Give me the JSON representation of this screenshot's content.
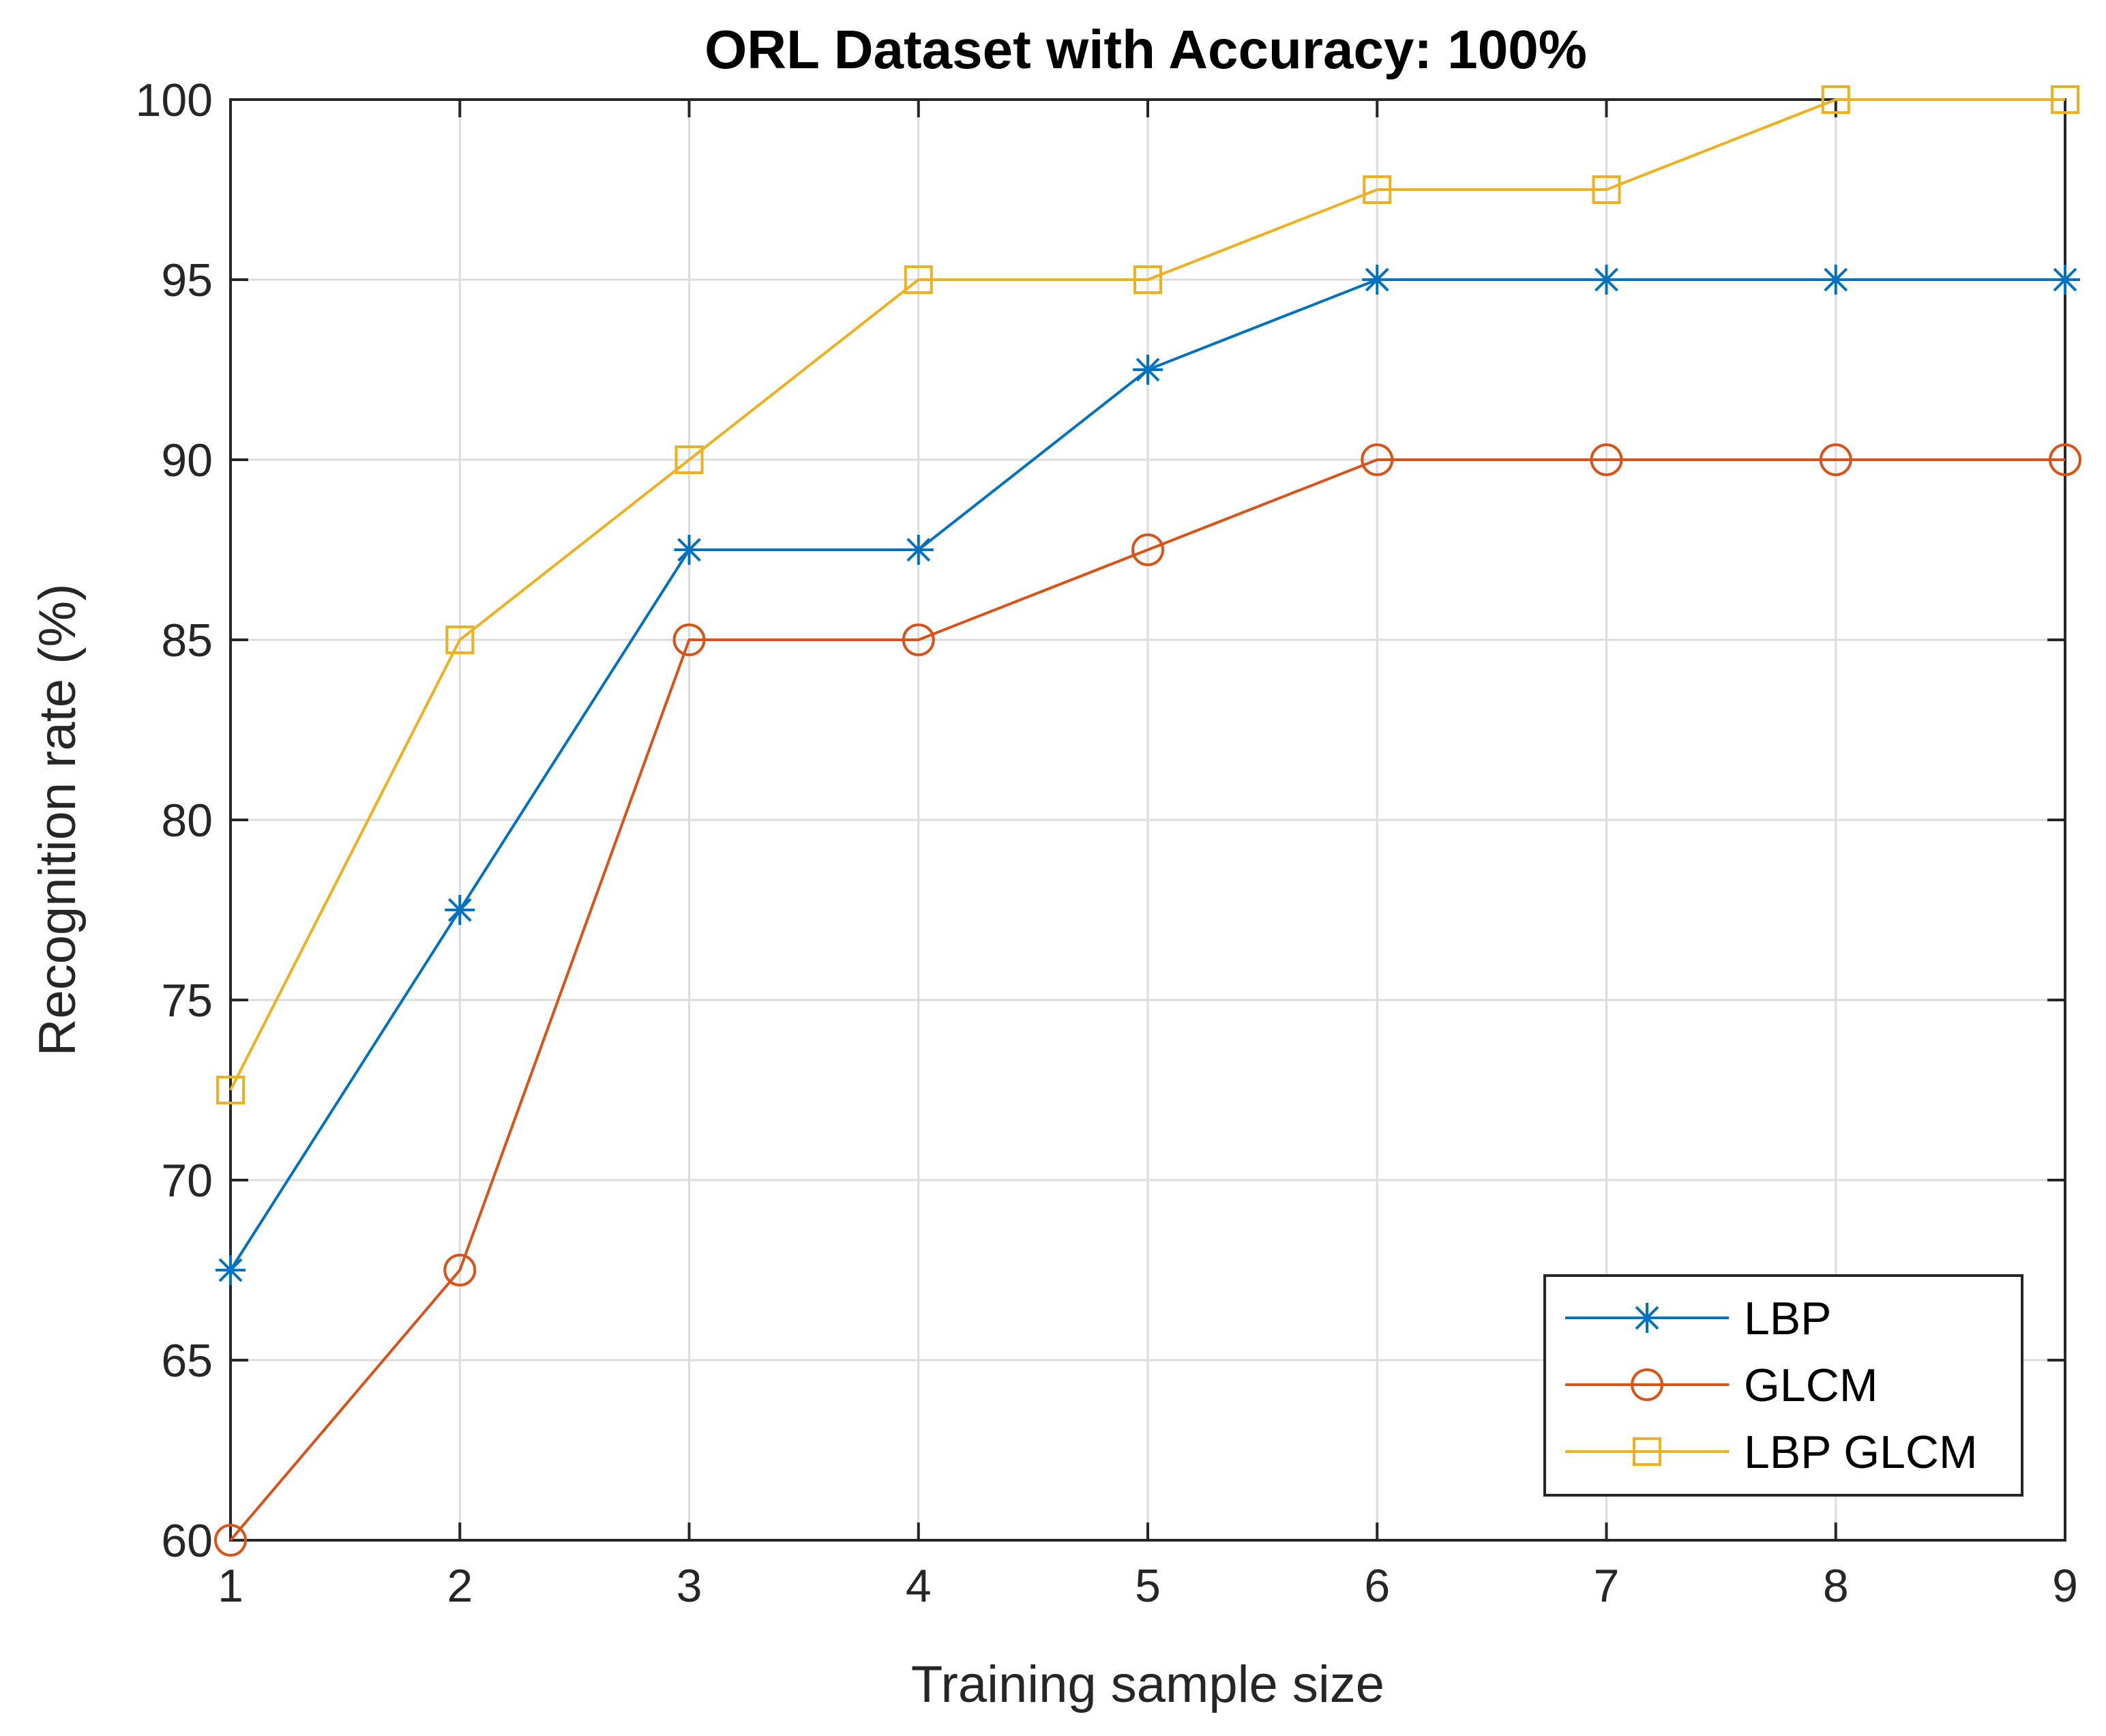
{
  "chart_data": {
    "type": "line",
    "title": "ORL Dataset with Accuracy: 100%",
    "xlabel": "Training sample size",
    "ylabel": "Recognition rate (%)",
    "xlim": [
      1,
      9
    ],
    "ylim": [
      60,
      100
    ],
    "x": [
      1,
      2,
      3,
      4,
      5,
      6,
      7,
      8,
      9
    ],
    "xticks": [
      1,
      2,
      3,
      4,
      5,
      6,
      7,
      8,
      9
    ],
    "yticks": [
      60,
      65,
      70,
      75,
      80,
      85,
      90,
      95,
      100
    ],
    "grid": true,
    "legend_position": "bottom-right",
    "series": [
      {
        "name": "LBP",
        "marker": "asterisk",
        "color": "#0072BD",
        "values": [
          67.5,
          77.5,
          87.5,
          87.5,
          92.5,
          95,
          95,
          95,
          95
        ]
      },
      {
        "name": "GLCM",
        "marker": "circle",
        "color": "#D95319",
        "values": [
          60,
          67.5,
          85,
          85,
          87.5,
          90,
          90,
          90,
          90
        ]
      },
      {
        "name": "LBP GLCM",
        "marker": "square",
        "color": "#EDB120",
        "values": [
          72.5,
          85,
          90,
          95,
          95,
          97.5,
          97.5,
          100,
          100
        ]
      }
    ]
  }
}
